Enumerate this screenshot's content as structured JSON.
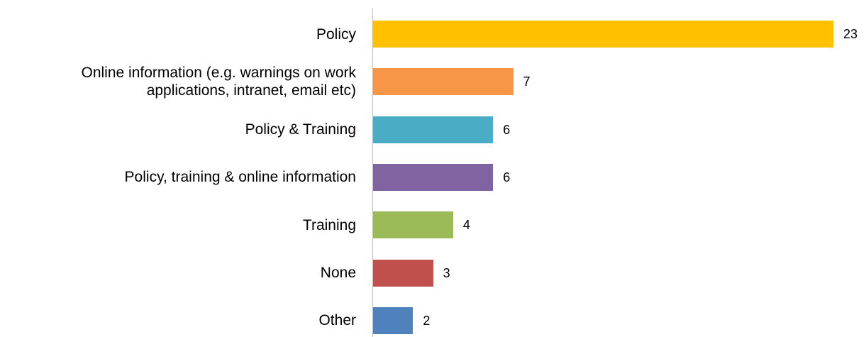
{
  "chart_data": {
    "type": "bar",
    "orientation": "horizontal",
    "categories": [
      "Policy",
      "Online information (e.g. warnings on work applications, intranet, email etc)",
      "Policy & Training",
      "Policy, training & online information",
      "Training",
      "None",
      "Other"
    ],
    "values": [
      23,
      7,
      6,
      6,
      4,
      3,
      2
    ],
    "colors": [
      "#FFC000",
      "#F79646",
      "#4BACC6",
      "#8064A2",
      "#9BBB59",
      "#C0504D",
      "#4F81BD"
    ]
  }
}
